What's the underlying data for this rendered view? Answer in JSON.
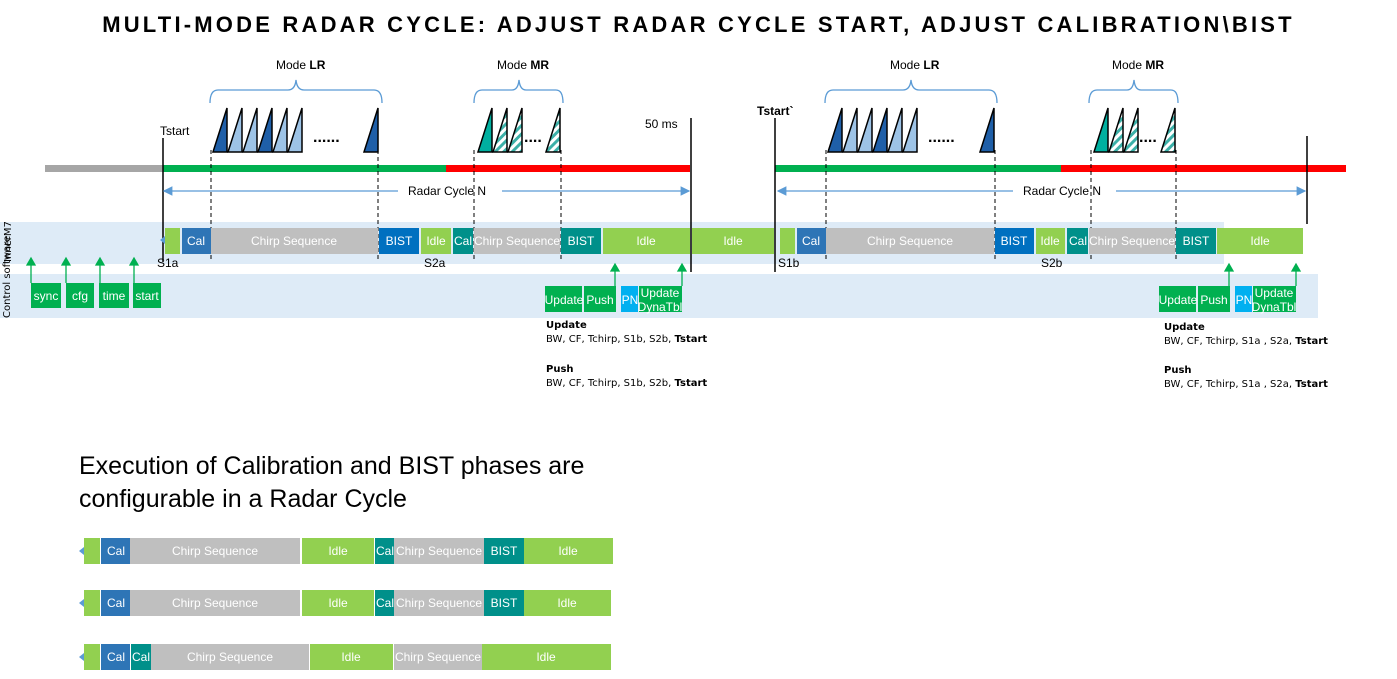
{
  "title": "MULTI-MODE RADAR CYCLE: ADJUST RADAR CYCLE START, ADJUST CALIBRATION\\BIST",
  "labels": {
    "mode_prefix": "Mode ",
    "lr": "LR",
    "mr": "MR",
    "tstart": "Tstart",
    "tstart_prime": "Tstart`",
    "ms50": "50 ms",
    "radar_cycle": "Radar Cycle N",
    "dots": "......",
    "dots_short": "....",
    "inner": "InnerM7",
    "control": "Control software",
    "s1a": "S1a",
    "s2a": "S2a",
    "s1b": "S1b",
    "s2b": "S2b"
  },
  "blocks": {
    "cal": "Cal",
    "chirp": "Chirp Sequence",
    "bist": "BIST",
    "idle": "Idle",
    "sync": "sync",
    "cfg": "cfg",
    "time": "time",
    "start": "start",
    "update": "Update",
    "push": "Push",
    "pn": "PN",
    "update_dyna": "Update DynaTbl"
  },
  "notes": {
    "left": {
      "update_title": "Update",
      "update_body": "BW, CF, Tchirp, S1b, S2b, ",
      "push_title": "Push",
      "push_body": "BW, CF, Tchirp, S1b, S2b, ",
      "tstart": "Tstart"
    },
    "right": {
      "update_title": "Update",
      "update_body": "BW, CF, Tchirp, S1a , S2a, ",
      "push_title": "Push",
      "push_body": "BW, CF, Tchirp, S1a , S2a, ",
      "tstart": "Tstart"
    }
  },
  "execution_text": "Execution of Calibration and BIST phases are configurable in a Radar Cycle",
  "colors": {
    "light_green": "#92d050",
    "dark_green": "#00b050",
    "red": "#ff0000",
    "gray": "#a6a6a6",
    "chirp_gray": "#bfbfbf",
    "cal_blue": "#2e75b6",
    "bist_blue": "#0070c0",
    "teal": "#00908a",
    "band": "#deebf7",
    "arrow": "#5b9bd5",
    "cyan": "#00b0f0"
  }
}
